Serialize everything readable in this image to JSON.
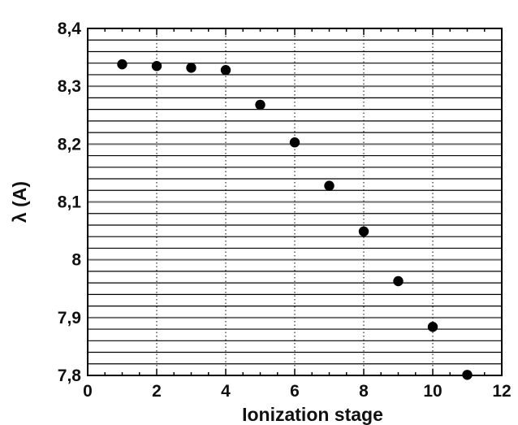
{
  "chart_data": {
    "type": "scatter",
    "title": "",
    "xlabel": "Ionization stage",
    "ylabel": "λ (A)",
    "xlim": [
      0,
      12
    ],
    "ylim": [
      7.8,
      8.4
    ],
    "x_ticks": [
      {
        "value": 0,
        "label": "0"
      },
      {
        "value": 2,
        "label": "2"
      },
      {
        "value": 4,
        "label": "4"
      },
      {
        "value": 6,
        "label": "6"
      },
      {
        "value": 8,
        "label": "8"
      },
      {
        "value": 10,
        "label": "10"
      },
      {
        "value": 12,
        "label": "12"
      }
    ],
    "y_ticks": [
      {
        "value": 7.8,
        "label": "7,8"
      },
      {
        "value": 7.9,
        "label": "7,9"
      },
      {
        "value": 8.0,
        "label": "8"
      },
      {
        "value": 8.1,
        "label": "8,1"
      },
      {
        "value": 8.2,
        "label": "8,2"
      },
      {
        "value": 8.3,
        "label": "8,3"
      },
      {
        "value": 8.4,
        "label": "8,4"
      }
    ],
    "grid": {
      "vertical": "dotted",
      "horizontal": "dense lines"
    },
    "series": [
      {
        "color": "#000000",
        "points": [
          {
            "x": 1,
            "y": 8.338
          },
          {
            "x": 2,
            "y": 8.335
          },
          {
            "x": 3,
            "y": 8.332
          },
          {
            "x": 4,
            "y": 8.328
          },
          {
            "x": 5,
            "y": 8.268
          },
          {
            "x": 6,
            "y": 8.203
          },
          {
            "x": 7,
            "y": 8.128
          },
          {
            "x": 8,
            "y": 8.049
          },
          {
            "x": 9,
            "y": 7.963
          },
          {
            "x": 10,
            "y": 7.884
          },
          {
            "x": 11,
            "y": 7.801
          }
        ]
      }
    ]
  }
}
